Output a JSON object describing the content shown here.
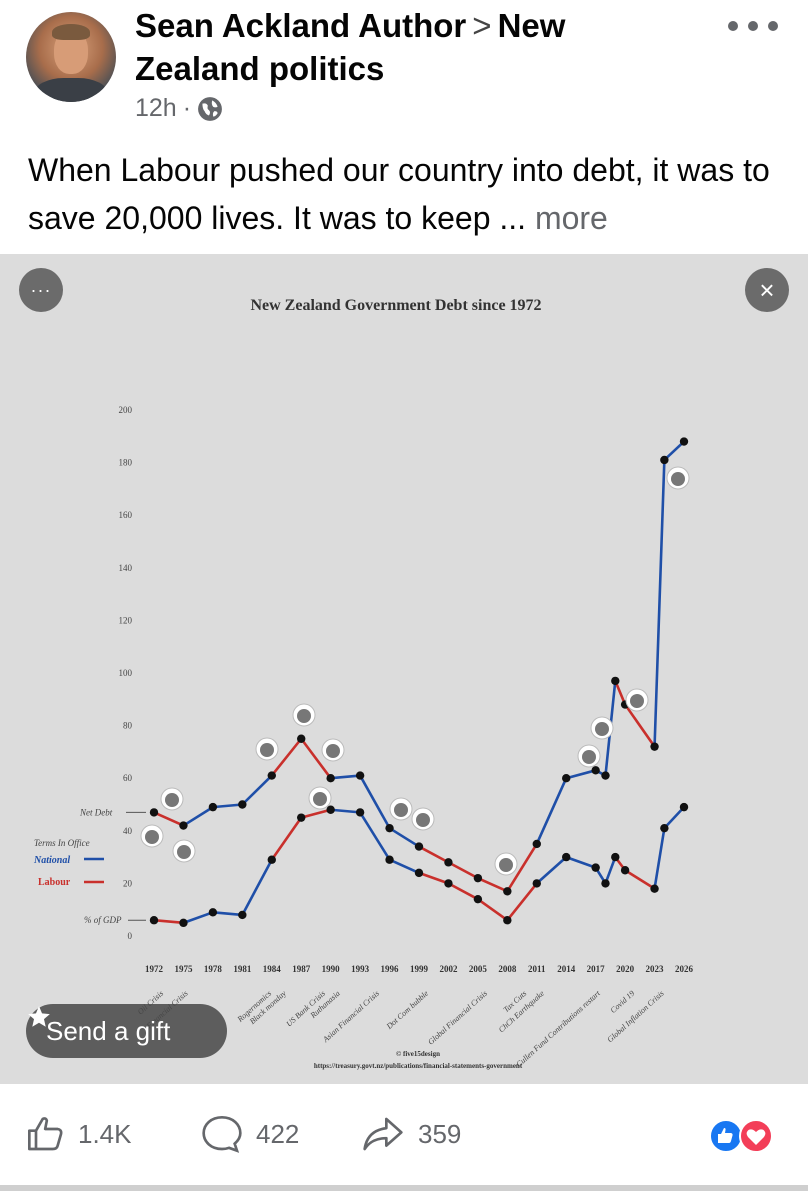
{
  "header": {
    "author": "Sean Ackland Author",
    "separator": ">",
    "group": "New Zealand politics",
    "time": "12h",
    "dot": "·"
  },
  "post": {
    "text": "When Labour pushed our country into debt, it was to save 20,000 lives. It was to keep ...",
    "more_label": "more"
  },
  "media": {
    "menu_label": "···",
    "close_label": "×",
    "gift_label": "Send a gift"
  },
  "actions": {
    "likes": "1.4K",
    "comments": "422",
    "shares": "359"
  },
  "colors": {
    "national": "#1f4fa8",
    "labour": "#c9302c",
    "like_blue": "#1877f2",
    "love_red": "#f33e58"
  },
  "chart_data": {
    "type": "line",
    "title": "New Zealand Government Debt since 1972",
    "x": [
      1972,
      1975,
      1978,
      1981,
      1984,
      1987,
      1990,
      1993,
      1996,
      1999,
      2002,
      2005,
      2008,
      2011,
      2014,
      2017,
      2018,
      2019,
      2020,
      2023,
      2024,
      2026
    ],
    "yticks": [
      0,
      20,
      40,
      60,
      80,
      100,
      120,
      140,
      160,
      180,
      200
    ],
    "xticks": [
      1972,
      1975,
      1978,
      1981,
      1984,
      1987,
      1990,
      1993,
      1996,
      1999,
      2002,
      2005,
      2008,
      2011,
      2014,
      2017,
      2020,
      2023,
      2026
    ],
    "ylim": [
      0,
      200
    ],
    "series": [
      {
        "name": "Net Debt",
        "values": [
          47,
          42,
          49,
          50,
          61,
          75,
          60,
          61,
          41,
          34,
          28,
          22,
          17,
          35,
          60,
          63,
          61,
          97,
          88,
          72,
          181,
          188
        ]
      },
      {
        "name": "% of GDP",
        "values": [
          6,
          5,
          9,
          8,
          29,
          45,
          48,
          47,
          29,
          24,
          20,
          14,
          6,
          20,
          30,
          26,
          20,
          30,
          25,
          18,
          41,
          49
        ]
      }
    ],
    "legend": {
      "title": "Terms In Office",
      "items": [
        "National",
        "Labour"
      ],
      "position": "left"
    },
    "series_labels": [
      "Net Debt",
      "% of GDP"
    ],
    "annotations": [
      "Oil Crisis",
      "Financial Crisis",
      "Rogernomics",
      "Black monday",
      "US Bank Crisis",
      "Ruthanasia",
      "Asian Financial Crisis",
      "Dot Com bubble",
      "Global Financial Crisis",
      "Tax Cuts",
      "ChCh Earthquake",
      "Cullen Fund Contributions restart",
      "Covid 19",
      "Global Inflation Crisis"
    ],
    "credit": "© five15design",
    "source": "https://treasury.govt.nz/publications/financial-statements-government"
  }
}
